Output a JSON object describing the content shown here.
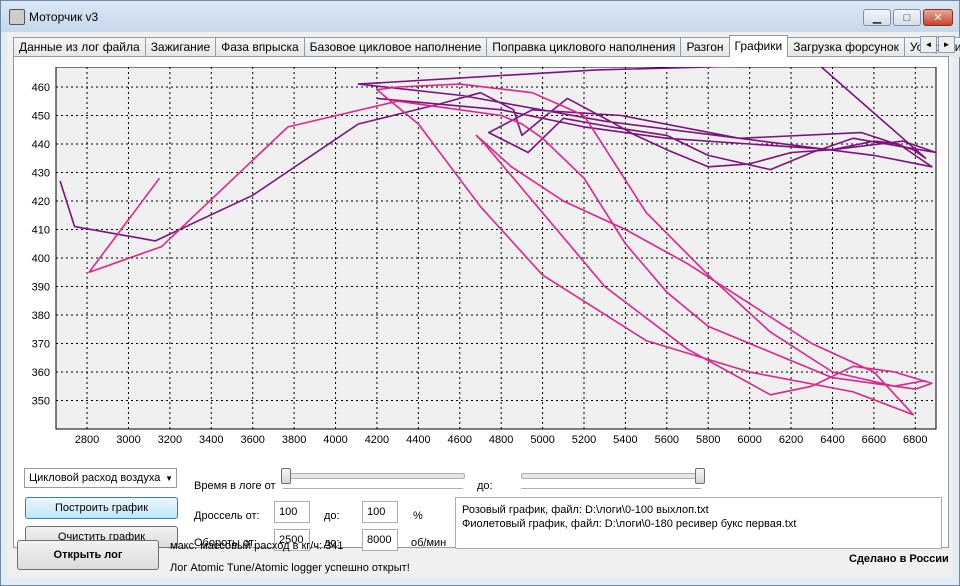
{
  "window": {
    "title": "Моторчик v3",
    "min_glyph": "▁",
    "max_glyph": "□",
    "close_glyph": "✕"
  },
  "tabs": [
    {
      "label": "Данные из лог файла"
    },
    {
      "label": "Зажигание"
    },
    {
      "label": "Фаза впрыска"
    },
    {
      "label": "Базовое цикловое наполнение"
    },
    {
      "label": "Поправка циклового наполнения"
    },
    {
      "label": "Разгон"
    },
    {
      "label": "Графики",
      "active": true
    },
    {
      "label": "Загрузка форсунок"
    },
    {
      "label": "Ускорения по"
    }
  ],
  "tab_scroll": {
    "left": "◄",
    "right": "►"
  },
  "controls": {
    "param_select": "Цикловой расход воздуха",
    "time_label": "Время в логе от",
    "time_to_label": "до:",
    "time_from": 0,
    "time_to": 1,
    "build_button": "Построить график",
    "clear_button": "Очистить график",
    "throttle_label": "Дроссель от:",
    "throttle_from": "100",
    "throttle_to_label": "до:",
    "throttle_to": "100",
    "throttle_unit": "%",
    "rpm_label": "Обороты от:",
    "rpm_from": "2500",
    "rpm_to_label": "до:",
    "rpm_to": "8000",
    "rpm_unit": "об/мин",
    "pink_file": "Розовый график, файл: D:\\логи\\0-100 выхлоп.txt",
    "purple_file": "Фиолетовый график, файл: D:\\логи\\0-180 ресивер букс первая.txt"
  },
  "footer": {
    "open_button": "Открыть лог",
    "max_flow": "макс. массовый расход в кг/ч: 341",
    "status": "Лог Atomic Tune/Atomic logger успешно открыт!",
    "made_in": "Сделано в России"
  },
  "colors": {
    "pink": "#e0248a",
    "purple": "#7d127f"
  },
  "chart_data": {
    "type": "line",
    "title": "",
    "xlabel": "",
    "ylabel": "",
    "xlim": [
      2650,
      6900
    ],
    "ylim": [
      340,
      467
    ],
    "x_ticks": [
      2800,
      3000,
      3200,
      3400,
      3600,
      3800,
      4000,
      4200,
      4400,
      4600,
      4800,
      5000,
      5200,
      5400,
      5600,
      5800,
      6000,
      6200,
      6400,
      6600,
      6800
    ],
    "y_ticks": [
      350,
      360,
      370,
      380,
      390,
      400,
      410,
      420,
      430,
      440,
      450,
      460
    ],
    "grid": true,
    "series": [
      {
        "color": "#7d127f",
        "x": [
          2670,
          2740,
          3130,
          3600,
          4110,
          4500,
          4700,
          4860,
          4900,
          5000,
          5120,
          5300,
          5450,
          5600,
          5800,
          6000,
          6200,
          6400,
          6600,
          6720,
          6880,
          6600,
          5300,
          4610,
          4110,
          5260,
          6330,
          6850,
          6790,
          6540,
          5950,
          5380,
          4950,
          4740,
          4930,
          5100,
          5330,
          5600,
          5800,
          6100,
          6300,
          6500,
          6740,
          6900,
          6740,
          6400,
          6000,
          5600,
          5200,
          4800,
          4200
        ],
        "y": [
          427,
          411,
          406,
          422,
          447,
          454,
          458,
          452,
          443,
          449,
          456,
          449,
          443,
          438,
          432,
          433,
          437,
          438,
          441,
          440,
          432,
          436,
          448,
          457,
          461,
          466,
          468,
          435,
          438,
          444,
          442,
          450,
          452,
          444,
          437,
          449,
          446,
          443,
          436,
          431,
          437,
          442,
          439,
          437,
          441,
          438,
          440,
          442,
          446,
          452,
          456
        ]
      },
      {
        "color": "#e0248a",
        "x": [
          3150,
          2810,
          3160,
          3770,
          4300,
          4800,
          4900,
          5000,
          5200,
          5400,
          5600,
          5800,
          6000,
          6200,
          6400,
          6600,
          6800,
          6880,
          6700,
          6500,
          6300,
          6100,
          5700,
          5300,
          4720,
          4680,
          4850,
          5100,
          5400,
          5700,
          6000,
          6300,
          6600,
          6790,
          6500,
          6000,
          5500,
          5000,
          4700,
          4400,
          4200,
          4300,
          4600,
          4950,
          5200,
          5500,
          5800,
          6100,
          6400,
          6700,
          6850
        ],
        "y": [
          428,
          395,
          404,
          446,
          455,
          450,
          447,
          442,
          428,
          405,
          388,
          376,
          370,
          364,
          358,
          356,
          354,
          356,
          360,
          362,
          355,
          352,
          368,
          390,
          440,
          443,
          432,
          420,
          410,
          398,
          384,
          370,
          360,
          345,
          353,
          360,
          371,
          394,
          418,
          447,
          459,
          460,
          461,
          458,
          450,
          416,
          394,
          374,
          360,
          355,
          357
        ]
      }
    ]
  }
}
